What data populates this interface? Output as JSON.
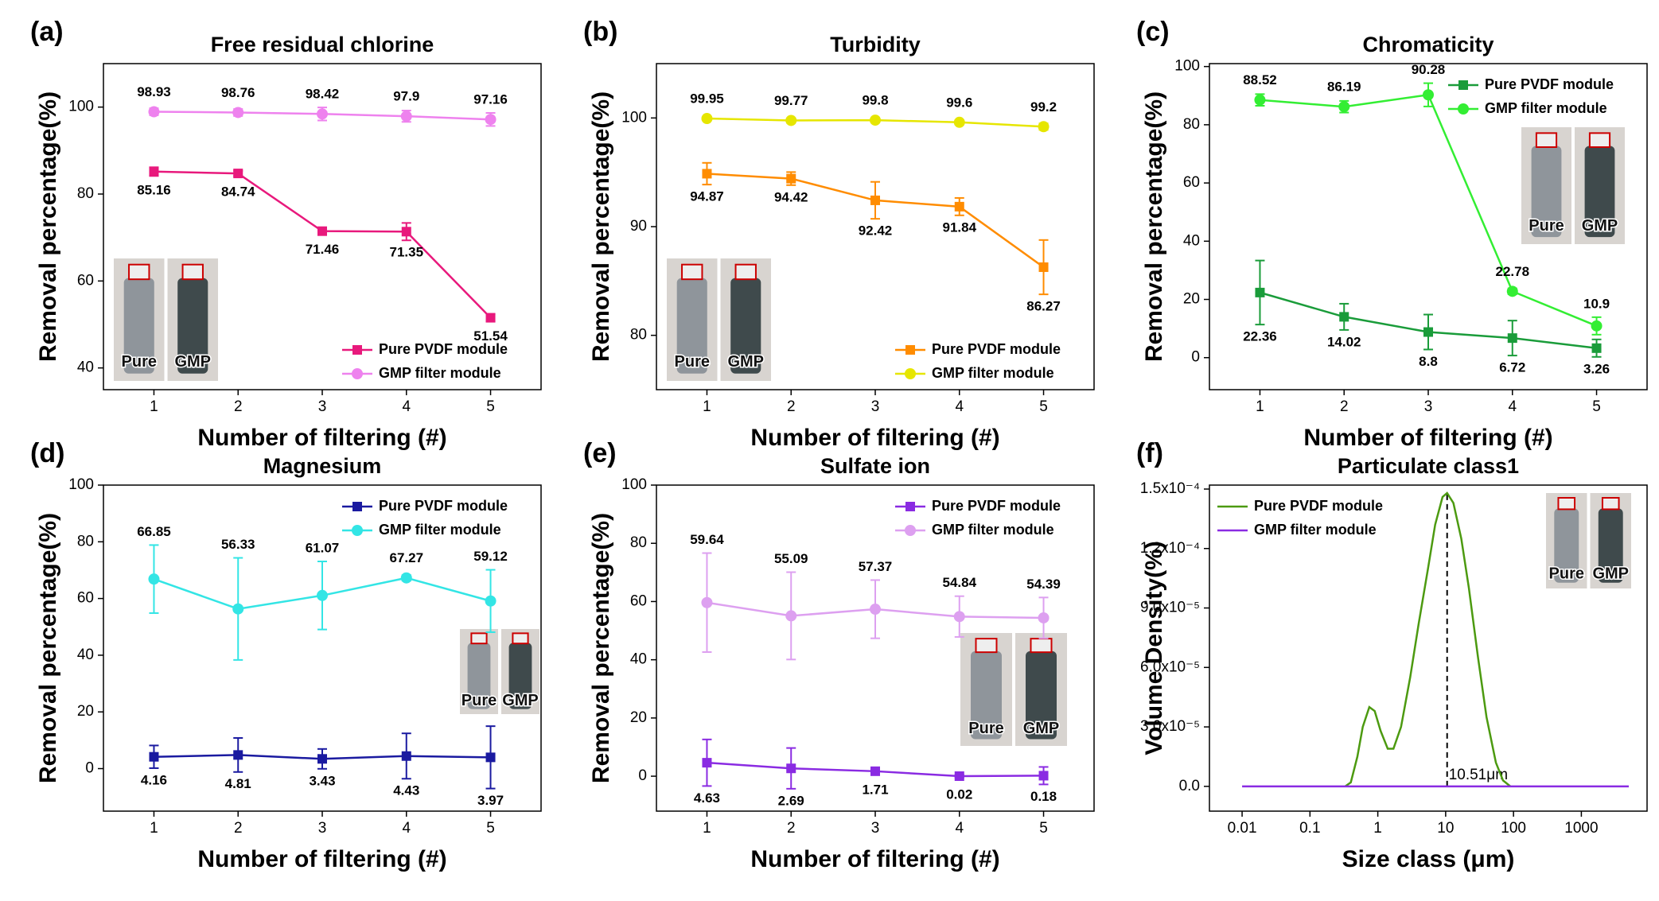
{
  "chart_data": [
    {
      "type": "line",
      "panel_label": "(a)",
      "title": "Free residual chlorine",
      "xlabel": "Number of filtering (#)",
      "ylabel": "Removal percentage(%)",
      "x": [
        1,
        2,
        3,
        4,
        5
      ],
      "xlim": [
        0.4,
        5.6
      ],
      "xticks": [
        1,
        2,
        3,
        4,
        5
      ],
      "ylim": [
        35,
        110
      ],
      "yticks": [
        40,
        60,
        80,
        100
      ],
      "legend": "lower right",
      "inset_labels": [
        "Pure",
        "GMP"
      ],
      "series": [
        {
          "name": "Pure PVDF module",
          "color": "#e8197c",
          "marker": "square",
          "values": [
            85.16,
            84.74,
            71.46,
            71.35,
            51.54
          ],
          "errors": [
            1,
            0.6,
            0.5,
            2,
            0.8
          ]
        },
        {
          "name": "GMP filter module",
          "color": "#ee82ee",
          "marker": "circle",
          "values": [
            98.93,
            98.76,
            98.42,
            97.9,
            97.16
          ],
          "errors": [
            0.8,
            0.8,
            1.5,
            1.3,
            1.5
          ]
        }
      ]
    },
    {
      "type": "line",
      "panel_label": "(b)",
      "title": "Turbidity",
      "xlabel": "Number of filtering (#)",
      "ylabel": "Removal percentage(%)",
      "x": [
        1,
        2,
        3,
        4,
        5
      ],
      "xlim": [
        0.4,
        5.6
      ],
      "xticks": [
        1,
        2,
        3,
        4,
        5
      ],
      "ylim": [
        75,
        105
      ],
      "yticks": [
        80,
        90,
        100
      ],
      "legend": "lower right",
      "inset_labels": [
        "Pure",
        "GMP"
      ],
      "series": [
        {
          "name": "Pure PVDF module",
          "color": "#ff8c00",
          "marker": "square",
          "values": [
            94.87,
            94.42,
            92.42,
            91.84,
            86.27
          ],
          "errors": [
            1,
            0.6,
            1.7,
            0.8,
            2.5
          ]
        },
        {
          "name": "GMP filter module",
          "color": "#e6e600",
          "marker": "circle",
          "values": [
            99.95,
            99.77,
            99.8,
            99.6,
            99.2
          ],
          "errors": [
            0.2,
            0.2,
            0.2,
            0.2,
            0.3
          ]
        }
      ]
    },
    {
      "type": "line",
      "panel_label": "(c)",
      "title": "Chromaticity",
      "xlabel": "Number of filtering (#)",
      "ylabel": "Removal percentage(%)",
      "x": [
        1,
        2,
        3,
        4,
        5
      ],
      "xlim": [
        0.4,
        5.6
      ],
      "xticks": [
        1,
        2,
        3,
        4,
        5
      ],
      "ylim": [
        -11,
        101
      ],
      "yticks": [
        0,
        20,
        40,
        60,
        80,
        100
      ],
      "legend": "upper right",
      "inset_labels": [
        "Pure",
        "GMP"
      ],
      "series": [
        {
          "name": "Pure PVDF module",
          "color": "#1a9c3a",
          "marker": "square",
          "values": [
            22.36,
            14.02,
            8.8,
            6.72,
            3.26
          ],
          "errors": [
            11,
            4.5,
            6,
            6,
            3
          ]
        },
        {
          "name": "GMP filter module",
          "color": "#33ee33",
          "marker": "circle",
          "values": [
            88.52,
            86.19,
            90.28,
            22.78,
            10.9
          ],
          "errors": [
            2,
            2,
            4,
            1,
            3
          ]
        }
      ]
    },
    {
      "type": "line",
      "panel_label": "(d)",
      "title": "Magnesium",
      "xlabel": "Number of filtering (#)",
      "ylabel": "Removal percentage(%)",
      "x": [
        1,
        2,
        3,
        4,
        5
      ],
      "xlim": [
        0.4,
        5.6
      ],
      "xticks": [
        1,
        2,
        3,
        4,
        5
      ],
      "ylim": [
        -15,
        100
      ],
      "yticks": [
        0,
        20,
        40,
        60,
        80,
        100
      ],
      "legend": "upper right",
      "inset_labels": [
        "Pure",
        "GMP"
      ],
      "series": [
        {
          "name": "Pure PVDF module",
          "color": "#1a1aa0",
          "marker": "square",
          "values": [
            4.16,
            4.81,
            3.43,
            4.43,
            3.97
          ],
          "errors": [
            4,
            6,
            3.5,
            8,
            11
          ]
        },
        {
          "name": "GMP filter module",
          "color": "#33e5e5",
          "marker": "circle",
          "values": [
            66.85,
            56.33,
            61.07,
            67.27,
            59.12
          ],
          "errors": [
            12,
            18,
            12,
            1,
            11
          ]
        }
      ]
    },
    {
      "type": "line",
      "panel_label": "(e)",
      "title": "Sulfate ion",
      "xlabel": "Number of filtering (#)",
      "ylabel": "Removal percentage(%)",
      "x": [
        1,
        2,
        3,
        4,
        5
      ],
      "xlim": [
        0.4,
        5.6
      ],
      "xticks": [
        1,
        2,
        3,
        4,
        5
      ],
      "ylim": [
        -12,
        100
      ],
      "yticks": [
        0,
        20,
        40,
        60,
        80,
        100
      ],
      "legend": "upper right",
      "inset_labels": [
        "Pure",
        "GMP"
      ],
      "series": [
        {
          "name": "Pure PVDF module",
          "color": "#8a2be2",
          "marker": "square",
          "values": [
            4.63,
            2.69,
            1.71,
            0.02,
            0.18
          ],
          "errors": [
            8,
            7,
            1,
            0.5,
            3
          ]
        },
        {
          "name": "GMP filter module",
          "color": "#dda0f0",
          "marker": "circle",
          "values": [
            59.64,
            55.09,
            57.37,
            54.84,
            54.39
          ],
          "errors": [
            17,
            15,
            10,
            7,
            7
          ]
        }
      ]
    },
    {
      "type": "line",
      "panel_label": "(f)",
      "title": "Particulate class1",
      "xlabel": "Size class (μm)",
      "ylabel": "Volume Density(%)",
      "xscale": "log",
      "xlim": [
        0.0033,
        9300
      ],
      "xticks": [
        0.01,
        0.1,
        1,
        10,
        100,
        1000
      ],
      "ylim": [
        -1.25e-05,
        0.000152
      ],
      "yticks": [
        {
          "value": 0,
          "label": "0.0"
        },
        {
          "value": 3e-05,
          "label": "3.0x10⁻⁵"
        },
        {
          "value": 6e-05,
          "label": "6.0x10⁻⁵"
        },
        {
          "value": 9e-05,
          "label": "9.0x10⁻⁵"
        },
        {
          "value": 0.00012,
          "label": "1.2x10⁻⁴"
        },
        {
          "value": 0.00015,
          "label": "1.5x10⁻⁴"
        }
      ],
      "legend": "upper left",
      "inset_labels": [
        "Pure",
        "GMP"
      ],
      "annotation": {
        "text": "10.51μm",
        "x": 10.51
      },
      "series": [
        {
          "name": "Pure PVDF module",
          "color": "#4c9a10",
          "x": [
            0.33,
            0.4,
            0.5,
            0.6,
            0.75,
            0.9,
            1.1,
            1.4,
            1.7,
            2.2,
            3,
            4,
            5.5,
            7,
            9,
            10.5,
            13,
            17,
            22,
            30,
            40,
            55,
            70,
            90
          ],
          "values": [
            0,
            2e-06,
            1.5e-05,
            3e-05,
            4e-05,
            3.8e-05,
            2.8e-05,
            1.9e-05,
            1.9e-05,
            3e-05,
            5.5e-05,
            8.2e-05,
            0.00011,
            0.000132,
            0.000146,
            0.000148,
            0.000143,
            0.000125,
            0.0001,
            6.5e-05,
            3.5e-05,
            1.2e-05,
            3e-06,
            0
          ]
        },
        {
          "name": "GMP filter module",
          "color": "#8a2be2",
          "x": [
            0.01,
            5000
          ],
          "values": [
            0,
            0
          ]
        }
      ]
    }
  ]
}
